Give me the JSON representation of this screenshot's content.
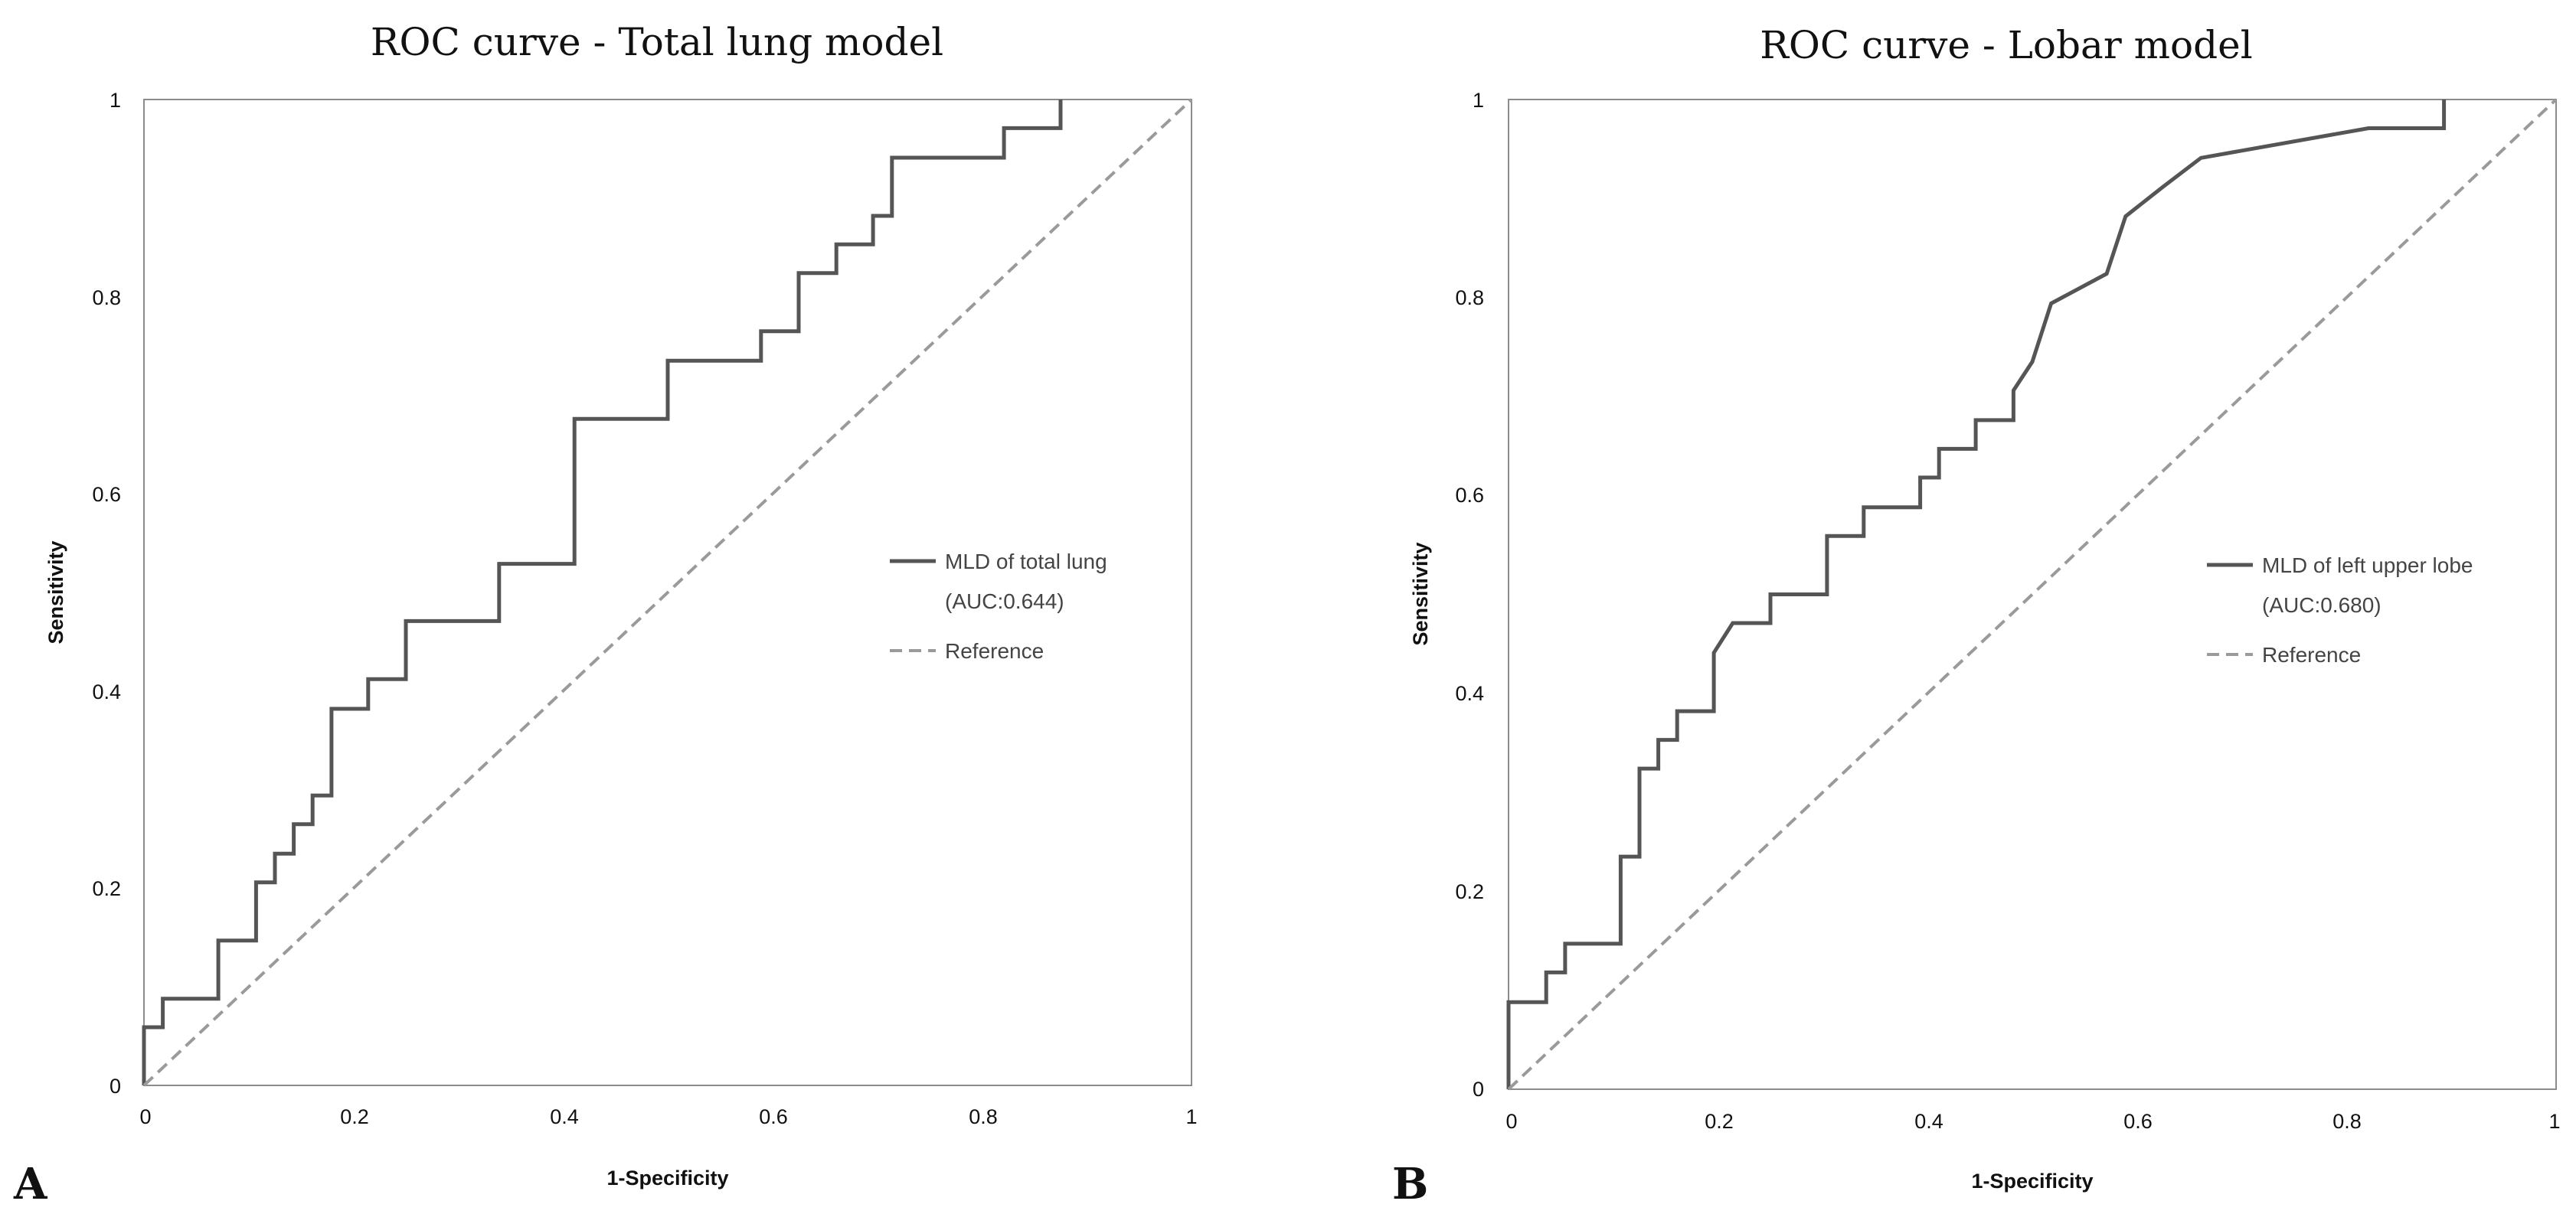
{
  "chart_data": [
    {
      "type": "line",
      "panel_label": "A",
      "title": "ROC curve - Total lung model",
      "xlabel": "1-Specificity",
      "ylabel": "Sensitivity",
      "xlim": [
        0,
        1
      ],
      "ylim": [
        0,
        1
      ],
      "x_ticks": [
        "0",
        "0.2",
        "0.4",
        "0.6",
        "0.8",
        "1"
      ],
      "y_ticks": [
        "0",
        "0.2",
        "0.4",
        "0.6",
        "0.8",
        "1"
      ],
      "grid": false,
      "legend_position": "right",
      "legend": [
        {
          "text": "MLD of total lung",
          "sub": "(AUC:0.644)",
          "style": "solid"
        },
        {
          "text": "Reference",
          "sub": "",
          "style": "dashed"
        }
      ],
      "series": [
        {
          "name": "MLD of total lung (AUC:0.644)",
          "style": "solid",
          "x": [
            0,
            0,
            0.018,
            0.018,
            0.071,
            0.071,
            0.107,
            0.107,
            0.125,
            0.125,
            0.143,
            0.143,
            0.161,
            0.161,
            0.179,
            0.179,
            0.214,
            0.214,
            0.25,
            0.25,
            0.339,
            0.339,
            0.411,
            0.411,
            0.5,
            0.5,
            0.589,
            0.589,
            0.625,
            0.625,
            0.661,
            0.661,
            0.696,
            0.696,
            0.714,
            0.714,
            0.821,
            0.821,
            0.875,
            0.875
          ],
          "y": [
            0,
            0.059,
            0.059,
            0.088,
            0.088,
            0.147,
            0.147,
            0.206,
            0.206,
            0.235,
            0.235,
            0.265,
            0.265,
            0.294,
            0.294,
            0.382,
            0.382,
            0.412,
            0.412,
            0.471,
            0.471,
            0.529,
            0.529,
            0.676,
            0.676,
            0.735,
            0.735,
            0.765,
            0.765,
            0.824,
            0.824,
            0.853,
            0.853,
            0.882,
            0.882,
            0.941,
            0.941,
            0.971,
            0.971,
            1.0
          ]
        },
        {
          "name": "Reference",
          "style": "dashed",
          "x": [
            0,
            1
          ],
          "y": [
            0,
            1
          ]
        }
      ]
    },
    {
      "type": "line",
      "panel_label": "B",
      "title": "ROC curve - Lobar model",
      "xlabel": "1-Specificity",
      "ylabel": "Sensitivity",
      "xlim": [
        0,
        1
      ],
      "ylim": [
        0,
        1
      ],
      "x_ticks": [
        "0",
        "0.2",
        "0.4",
        "0.6",
        "0.8",
        "1"
      ],
      "y_ticks": [
        "0",
        "0.2",
        "0.4",
        "0.6",
        "0.8",
        "1"
      ],
      "grid": false,
      "legend_position": "right",
      "legend": [
        {
          "text": "MLD of left upper lobe",
          "sub": "(AUC:0.680)",
          "style": "solid"
        },
        {
          "text": "Reference",
          "sub": "",
          "style": "dashed"
        }
      ],
      "series": [
        {
          "name": "MLD of left upper lobe (AUC:0.680)",
          "style": "solid",
          "x": [
            0,
            0,
            0.036,
            0.036,
            0.054,
            0.054,
            0.107,
            0.107,
            0.125,
            0.125,
            0.143,
            0.143,
            0.161,
            0.161,
            0.196,
            0.196,
            0.214,
            0.25,
            0.25,
            0.304,
            0.304,
            0.339,
            0.339,
            0.393,
            0.393,
            0.411,
            0.411,
            0.446,
            0.446,
            0.482,
            0.482,
            0.5,
            0.5,
            0.518,
            0.518,
            0.571,
            0.571,
            0.589,
            0.589,
            0.625,
            0.625,
            0.661,
            0.661,
            0.821,
            0.821,
            0.893,
            0.893
          ],
          "y": [
            0,
            0.088,
            0.088,
            0.118,
            0.118,
            0.147,
            0.147,
            0.235,
            0.235,
            0.324,
            0.324,
            0.353,
            0.353,
            0.382,
            0.382,
            0.441,
            0.471,
            0.471,
            0.5,
            0.5,
            0.559,
            0.559,
            0.588,
            0.588,
            0.618,
            0.618,
            0.647,
            0.647,
            0.676,
            0.676,
            0.706,
            0.735,
            0.735,
            0.794,
            0.794,
            0.824,
            0.824,
            0.882,
            0.882,
            0.912,
            0.912,
            0.941,
            0.941,
            0.971,
            0.971,
            0.971,
            1.0
          ]
        },
        {
          "name": "Reference",
          "style": "dashed",
          "x": [
            0,
            1
          ],
          "y": [
            0,
            1
          ]
        }
      ]
    }
  ]
}
